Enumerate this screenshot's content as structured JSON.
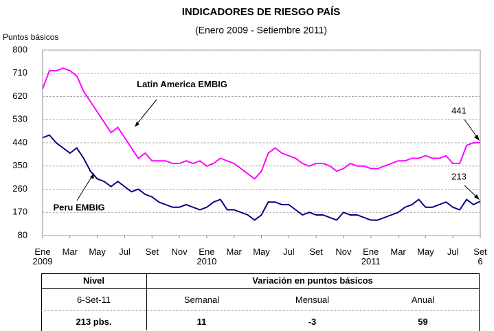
{
  "chart_data": {
    "type": "line",
    "title": "INDICADORES DE RIESGO PAÍS",
    "subtitle": "(Enero 2009 - Setiembre 2011)",
    "y_label": "Puntos básicos",
    "categories": [
      "Ene\n2009",
      null,
      null,
      null,
      "Mar",
      null,
      null,
      null,
      "May",
      null,
      null,
      null,
      "Jul",
      null,
      null,
      null,
      "Set",
      null,
      null,
      null,
      "Nov",
      null,
      null,
      null,
      "Ene\n2010",
      null,
      null,
      null,
      "Mar",
      null,
      null,
      null,
      "May",
      null,
      null,
      null,
      "Jul",
      null,
      null,
      null,
      "Set",
      null,
      null,
      null,
      "Nov",
      null,
      null,
      null,
      "Ene\n2011",
      null,
      null,
      null,
      "Mar",
      null,
      null,
      null,
      "May",
      null,
      null,
      null,
      "Jul",
      null,
      null,
      null,
      "Set\n6"
    ],
    "series": [
      {
        "name": "Latin America EMBIG",
        "color": "#ff00ff",
        "values": [
          650,
          720,
          720,
          730,
          720,
          700,
          640,
          600,
          560,
          520,
          480,
          500,
          460,
          420,
          380,
          400,
          370,
          370,
          370,
          360,
          360,
          370,
          360,
          370,
          350,
          360,
          380,
          370,
          360,
          340,
          320,
          300,
          330,
          400,
          420,
          400,
          390,
          380,
          360,
          350,
          360,
          360,
          350,
          330,
          340,
          360,
          350,
          350,
          340,
          340,
          350,
          360,
          370,
          370,
          380,
          380,
          390,
          380,
          380,
          390,
          360,
          360,
          430,
          440,
          441
        ]
      },
      {
        "name": "Peru  EMBIG",
        "color": "#000080",
        "values": [
          460,
          470,
          440,
          420,
          400,
          420,
          380,
          330,
          300,
          290,
          270,
          290,
          270,
          250,
          260,
          240,
          230,
          210,
          200,
          190,
          190,
          200,
          190,
          180,
          190,
          210,
          220,
          180,
          180,
          170,
          160,
          140,
          160,
          210,
          210,
          200,
          200,
          180,
          160,
          170,
          160,
          160,
          150,
          140,
          170,
          160,
          160,
          150,
          140,
          140,
          150,
          160,
          170,
          190,
          200,
          220,
          190,
          190,
          200,
          210,
          190,
          180,
          220,
          200,
          213
        ]
      }
    ],
    "ylim": [
      80,
      800
    ],
    "yticks": [
      80,
      170,
      260,
      350,
      440,
      530,
      620,
      710,
      800
    ],
    "grid": true
  },
  "table": {
    "header": [
      "Nivel",
      "Variación en puntos básicos"
    ],
    "subheader": [
      "6-Set-11",
      "Semanal",
      "Mensual",
      "Anual"
    ],
    "row": [
      "213 pbs.",
      "11",
      "-3",
      "59"
    ]
  }
}
